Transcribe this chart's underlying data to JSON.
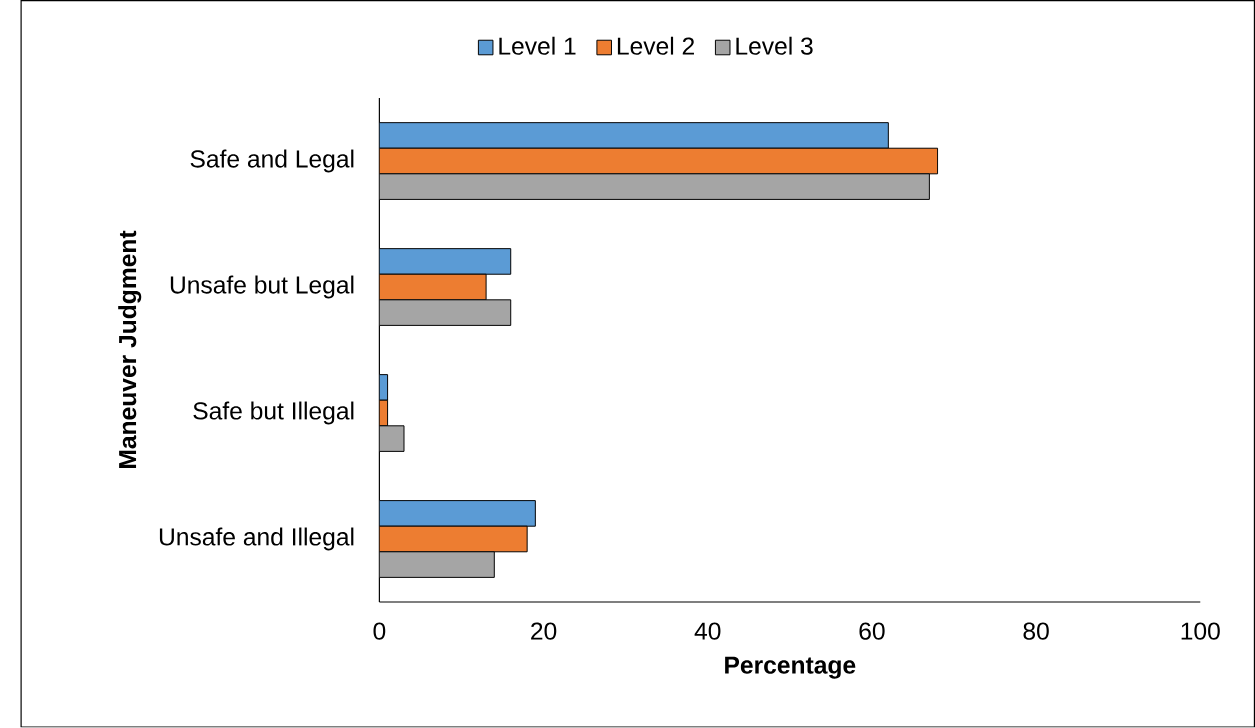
{
  "chart_data": {
    "type": "bar",
    "orientation": "horizontal",
    "xlabel": "Percentage",
    "ylabel": "Maneuver Judgment",
    "categories": [
      "Safe and Legal",
      "Unsafe but Legal",
      "Safe but Illegal",
      "Unsafe and Illegal"
    ],
    "series": [
      {
        "name": "Level 1",
        "color": "#5b9bd5",
        "values": [
          62,
          16,
          1,
          19
        ]
      },
      {
        "name": "Level 2",
        "color": "#ed7d31",
        "values": [
          68,
          13,
          1,
          18
        ]
      },
      {
        "name": "Level 3",
        "color": "#a5a5a5",
        "values": [
          67,
          16,
          3,
          14
        ]
      }
    ],
    "xlim": [
      0,
      100
    ],
    "xticks": [
      0,
      20,
      40,
      60,
      80,
      100
    ],
    "legend": "top"
  }
}
